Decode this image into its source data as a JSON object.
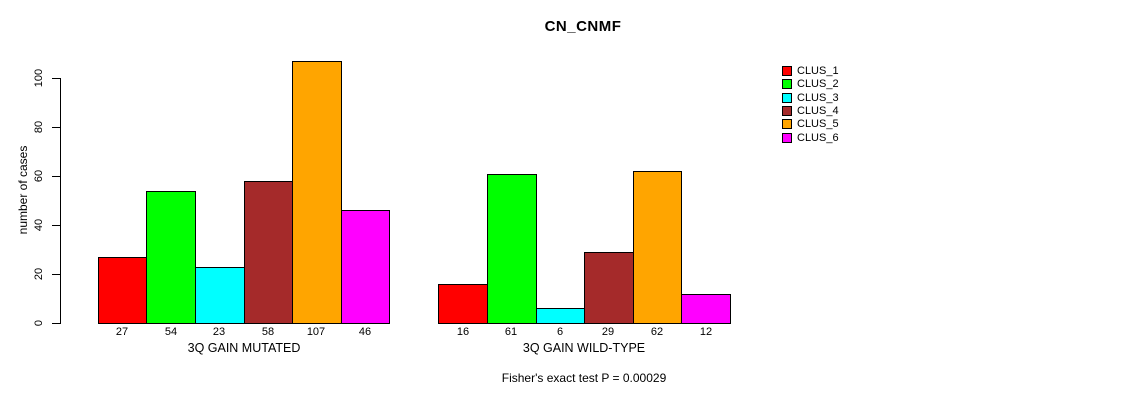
{
  "chart_data": {
    "type": "bar",
    "title": "CN_CNMF",
    "ylabel": "number of cases",
    "xlabel": "",
    "ylim": [
      0,
      110
    ],
    "yticks": [
      0,
      20,
      40,
      60,
      80,
      100
    ],
    "grid": false,
    "legend_position": "right",
    "annotation": "Fisher's exact test P = 0.00029",
    "categories": [
      "3Q GAIN MUTATED",
      "3Q GAIN WILD-TYPE"
    ],
    "series": [
      {
        "name": "CLUS_1",
        "color": "#FF0000",
        "values": [
          27,
          16
        ]
      },
      {
        "name": "CLUS_2",
        "color": "#00FF00",
        "values": [
          54,
          61
        ]
      },
      {
        "name": "CLUS_3",
        "color": "#00FFFF",
        "values": [
          23,
          6
        ]
      },
      {
        "name": "CLUS_4",
        "color": "#A52A2A",
        "values": [
          58,
          29
        ]
      },
      {
        "name": "CLUS_5",
        "color": "#FFA500",
        "values": [
          107,
          62
        ]
      },
      {
        "name": "CLUS_6",
        "color": "#FF00FF",
        "values": [
          46,
          12
        ]
      }
    ],
    "bar_value_labels": {
      "3Q GAIN MUTATED": [
        27,
        54,
        23,
        58,
        107,
        46
      ],
      "3Q GAIN WILD-TYPE": [
        16,
        61,
        6,
        29,
        62,
        12
      ]
    },
    "colors": {
      "background": "#FFFFFF",
      "axis": "#000000",
      "text": "#000000"
    }
  }
}
